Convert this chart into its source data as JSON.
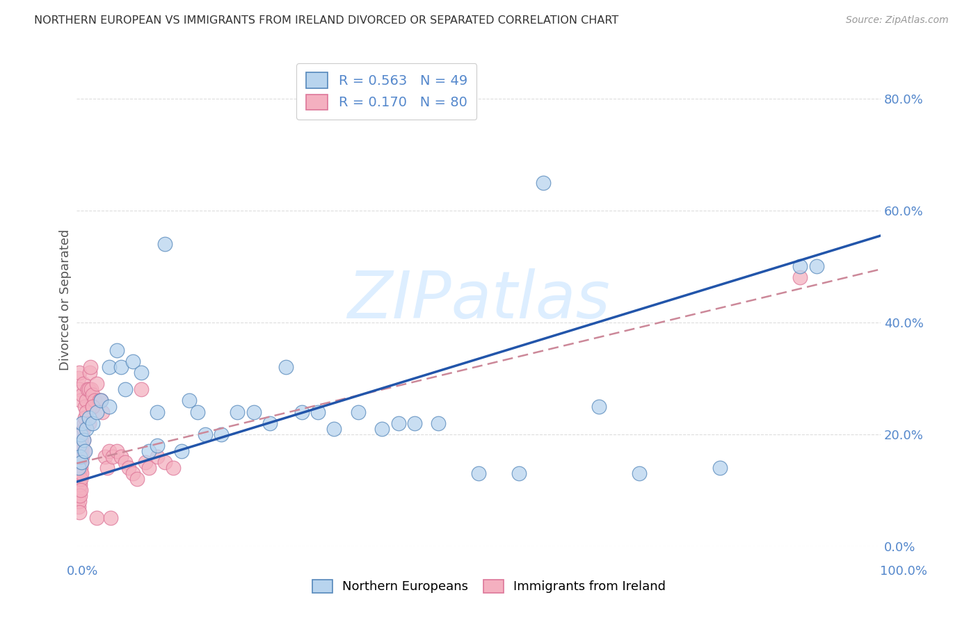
{
  "title": "NORTHERN EUROPEAN VS IMMIGRANTS FROM IRELAND DIVORCED OR SEPARATED CORRELATION CHART",
  "source": "Source: ZipAtlas.com",
  "ylabel": "Divorced or Separated",
  "blue_R": 0.563,
  "blue_N": 49,
  "pink_R": 0.17,
  "pink_N": 80,
  "title_color": "#333333",
  "source_color": "#999999",
  "axis_tick_color": "#5588cc",
  "grid_color": "#dddddd",
  "watermark": "ZIPatlas",
  "watermark_color": "#ddeeff",
  "blue_line_color": "#2255aa",
  "pink_line_color": "#cc8899",
  "scatter_blue_face": "#b8d4ee",
  "scatter_blue_edge": "#5588bb",
  "scatter_pink_face": "#f4b0c0",
  "scatter_pink_edge": "#dd7799",
  "bg_color": "#ffffff",
  "blue_scatter_x": [
    0.002,
    0.003,
    0.004,
    0.005,
    0.006,
    0.007,
    0.008,
    0.01,
    0.012,
    0.015,
    0.02,
    0.025,
    0.03,
    0.04,
    0.04,
    0.05,
    0.055,
    0.06,
    0.07,
    0.08,
    0.09,
    0.1,
    0.1,
    0.11,
    0.13,
    0.14,
    0.15,
    0.16,
    0.18,
    0.2,
    0.22,
    0.24,
    0.26,
    0.28,
    0.3,
    0.32,
    0.35,
    0.38,
    0.4,
    0.42,
    0.45,
    0.5,
    0.55,
    0.58,
    0.65,
    0.7,
    0.8,
    0.9,
    0.92
  ],
  "blue_scatter_y": [
    0.14,
    0.18,
    0.16,
    0.2,
    0.15,
    0.22,
    0.19,
    0.17,
    0.21,
    0.23,
    0.22,
    0.24,
    0.26,
    0.25,
    0.32,
    0.35,
    0.32,
    0.28,
    0.33,
    0.31,
    0.17,
    0.18,
    0.24,
    0.54,
    0.17,
    0.26,
    0.24,
    0.2,
    0.2,
    0.24,
    0.24,
    0.22,
    0.32,
    0.24,
    0.24,
    0.21,
    0.24,
    0.21,
    0.22,
    0.22,
    0.22,
    0.13,
    0.13,
    0.65,
    0.25,
    0.13,
    0.14,
    0.5,
    0.5
  ],
  "pink_scatter_x": [
    0.001,
    0.001,
    0.001,
    0.001,
    0.001,
    0.002,
    0.002,
    0.002,
    0.002,
    0.002,
    0.002,
    0.002,
    0.003,
    0.003,
    0.003,
    0.003,
    0.003,
    0.003,
    0.003,
    0.004,
    0.004,
    0.004,
    0.004,
    0.004,
    0.005,
    0.005,
    0.005,
    0.005,
    0.005,
    0.005,
    0.006,
    0.006,
    0.006,
    0.006,
    0.007,
    0.007,
    0.007,
    0.007,
    0.008,
    0.008,
    0.008,
    0.009,
    0.009,
    0.01,
    0.01,
    0.012,
    0.012,
    0.014,
    0.015,
    0.015,
    0.016,
    0.017,
    0.018,
    0.02,
    0.02,
    0.022,
    0.025,
    0.025,
    0.028,
    0.03,
    0.032,
    0.035,
    0.038,
    0.04,
    0.042,
    0.045,
    0.05,
    0.055,
    0.06,
    0.065,
    0.07,
    0.075,
    0.08,
    0.085,
    0.09,
    0.1,
    0.11,
    0.12,
    0.02,
    0.9
  ],
  "pink_scatter_y": [
    0.12,
    0.13,
    0.1,
    0.08,
    0.16,
    0.15,
    0.13,
    0.11,
    0.09,
    0.07,
    0.3,
    0.16,
    0.14,
    0.12,
    0.1,
    0.08,
    0.06,
    0.28,
    0.31,
    0.17,
    0.15,
    0.13,
    0.11,
    0.09,
    0.18,
    0.16,
    0.14,
    0.12,
    0.1,
    0.26,
    0.19,
    0.17,
    0.15,
    0.13,
    0.2,
    0.18,
    0.16,
    0.27,
    0.21,
    0.19,
    0.29,
    0.22,
    0.17,
    0.25,
    0.23,
    0.26,
    0.24,
    0.28,
    0.28,
    0.22,
    0.31,
    0.32,
    0.28,
    0.27,
    0.25,
    0.26,
    0.29,
    0.05,
    0.26,
    0.26,
    0.24,
    0.16,
    0.14,
    0.17,
    0.05,
    0.16,
    0.17,
    0.16,
    0.15,
    0.14,
    0.13,
    0.12,
    0.28,
    0.15,
    0.14,
    0.16,
    0.15,
    0.14,
    0.25,
    0.48
  ],
  "blue_line_x0": 0.0,
  "blue_line_y0": 0.115,
  "blue_line_x1": 1.0,
  "blue_line_y1": 0.555,
  "pink_line_x0": 0.0,
  "pink_line_y0": 0.148,
  "pink_line_x1": 1.0,
  "pink_line_y1": 0.495,
  "xlim": [
    0.0,
    1.0
  ],
  "ylim": [
    0.0,
    0.88
  ],
  "yticks": [
    0.0,
    0.2,
    0.4,
    0.6,
    0.8
  ],
  "ytick_labels": [
    "0.0%",
    "20.0%",
    "40.0%",
    "60.0%",
    "80.0%"
  ],
  "legend_blue_label": "R = 0.563   N = 49",
  "legend_pink_label": "R = 0.170   N = 80",
  "bottom_legend_blue": "Northern Europeans",
  "bottom_legend_pink": "Immigrants from Ireland"
}
